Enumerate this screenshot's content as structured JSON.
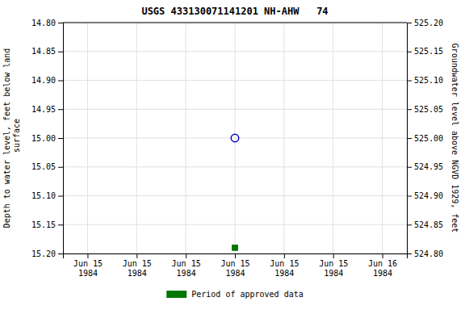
{
  "chart_data": {
    "type": "scatter",
    "title": "USGS 433130071141201 NH-AHW   74",
    "y_label": "Depth to water level, feet below land\n surface",
    "y2_label": "Groundwater level above NGVD 1929, feet",
    "categories": [
      "Jun 15\n1984",
      "Jun 15\n1984",
      "Jun 15\n1984",
      "Jun 15\n1984",
      "Jun 15\n1984",
      "Jun 15\n1984",
      "Jun 16\n1984"
    ],
    "series": [
      {
        "color": "#0000cc",
        "marker": "circle",
        "values": [
          null,
          null,
          null,
          15.0,
          null,
          null,
          null
        ]
      },
      {
        "name": "Period of approved data",
        "color": "#007700",
        "marker": "square",
        "values": [
          null,
          null,
          null,
          15.19,
          null,
          null,
          null
        ]
      }
    ],
    "ylim": [
      15.2,
      14.8
    ],
    "yticks": [
      {
        "value": 14.8,
        "label": "14.80"
      },
      {
        "value": 14.85,
        "label": "14.85"
      },
      {
        "value": 14.9,
        "label": "14.90"
      },
      {
        "value": 14.95,
        "label": "14.95"
      },
      {
        "value": 15.0,
        "label": "15.00"
      },
      {
        "value": 15.05,
        "label": "15.05"
      },
      {
        "value": 15.1,
        "label": "15.10"
      },
      {
        "value": 15.15,
        "label": "15.15"
      },
      {
        "value": 15.2,
        "label": "15.20"
      }
    ],
    "y2lim": [
      524.8,
      525.2
    ],
    "y2ticks": [
      {
        "value": 524.8,
        "label": "524.80"
      },
      {
        "value": 524.85,
        "label": "524.85"
      },
      {
        "value": 524.9,
        "label": "524.90"
      },
      {
        "value": 524.95,
        "label": "524.95"
      },
      {
        "value": 525.0,
        "label": "525.00"
      },
      {
        "value": 525.05,
        "label": "525.05"
      },
      {
        "value": 525.1,
        "label": "525.10"
      },
      {
        "value": 525.15,
        "label": "525.15"
      },
      {
        "value": 525.2,
        "label": "525.20"
      }
    ],
    "grid": true,
    "legend": "bottom"
  }
}
